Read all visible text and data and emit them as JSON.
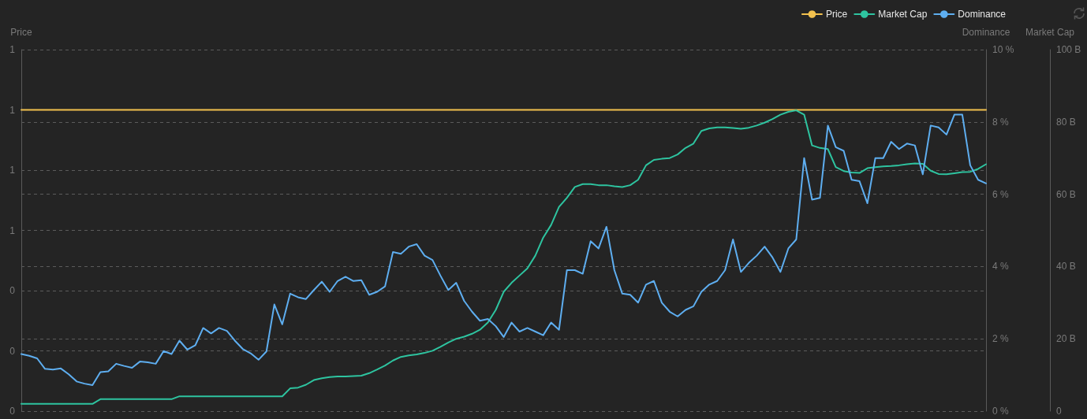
{
  "chart_data": {
    "type": "line",
    "categories": [
      null,
      null,
      null,
      null,
      null,
      null,
      null,
      null,
      null,
      null,
      null,
      null,
      null,
      null,
      null,
      null,
      null,
      null,
      null,
      null,
      null,
      null,
      null,
      null,
      null,
      null,
      null,
      null,
      null,
      null,
      null,
      null,
      null,
      null,
      null,
      null,
      null,
      null,
      null,
      null,
      null,
      null,
      null,
      null,
      null,
      null,
      null,
      null,
      null,
      null,
      null,
      null,
      null,
      null,
      null,
      null,
      null,
      null,
      null,
      null,
      null,
      null,
      null,
      null,
      null,
      null,
      null,
      null,
      null,
      null,
      null,
      null,
      null,
      null,
      null,
      null,
      null,
      null,
      null,
      null,
      null,
      null,
      null,
      null,
      null,
      null,
      null,
      null,
      null,
      null,
      null,
      null,
      null,
      null,
      null,
      null,
      null,
      null,
      null,
      null,
      null,
      null,
      null,
      null,
      null,
      null,
      null,
      null,
      null,
      null,
      null,
      null,
      null,
      null,
      null,
      null,
      null,
      null,
      null,
      null,
      null,
      null,
      null
    ],
    "series": [
      {
        "name": "Price",
        "color": "#f2c14e",
        "values": [
          1,
          1,
          1,
          1,
          1,
          1,
          1,
          1,
          1,
          1,
          1,
          1,
          1,
          1,
          1,
          1,
          1,
          1,
          1,
          1,
          1,
          1,
          1,
          1,
          1,
          1,
          1,
          1,
          1,
          1,
          1,
          1,
          1,
          1,
          1,
          1,
          1,
          1,
          1,
          1,
          1,
          1,
          1,
          1,
          1,
          1,
          1,
          1,
          1,
          1,
          1,
          1,
          1,
          1,
          1,
          1,
          1,
          1,
          1,
          1,
          1,
          1,
          1,
          1,
          1,
          1,
          1,
          1,
          1,
          1,
          1,
          1,
          1,
          1,
          1,
          1,
          1,
          1,
          1,
          1,
          1,
          1,
          1,
          1,
          1,
          1,
          1,
          1,
          1,
          1,
          1,
          1,
          1,
          1,
          1,
          1,
          1,
          1,
          1,
          1,
          1,
          1,
          1,
          1,
          1,
          1,
          1,
          1,
          1,
          1,
          1,
          1,
          1,
          1,
          1,
          1,
          1,
          1,
          1,
          1,
          1,
          1,
          1
        ]
      },
      {
        "name": "Market Cap",
        "color": "#2ec4a0",
        "axis": "y3",
        "values": [
          2.0,
          2.0,
          2.0,
          2.0,
          2.0,
          2.0,
          2.0,
          2.0,
          2.0,
          2.0,
          3.3,
          3.3,
          3.3,
          3.3,
          3.3,
          3.3,
          3.3,
          3.3,
          3.3,
          3.3,
          4.1,
          4.1,
          4.1,
          4.1,
          4.1,
          4.1,
          4.1,
          4.1,
          4.1,
          4.1,
          4.1,
          4.1,
          4.1,
          4.1,
          6.3,
          6.5,
          7.3,
          8.6,
          9.1,
          9.4,
          9.6,
          9.6,
          9.7,
          9.8,
          10.5,
          11.5,
          12.6,
          14.0,
          15.0,
          15.4,
          15.7,
          16.1,
          16.7,
          17.8,
          19.0,
          20.0,
          20.6,
          21.4,
          22.5,
          24.5,
          28.0,
          33.0,
          35.5,
          37.5,
          39.5,
          43.0,
          48.0,
          51.5,
          56.5,
          59.0,
          62.0,
          62.8,
          62.8,
          62.5,
          62.5,
          62.2,
          62.0,
          62.5,
          64.0,
          68.0,
          69.5,
          69.8,
          70.0,
          71.0,
          72.8,
          74.0,
          77.5,
          78.2,
          78.5,
          78.5,
          78.3,
          78.1,
          78.4,
          79.0,
          79.8,
          80.8,
          82.0,
          82.8,
          83.2,
          82.0,
          73.5,
          72.8,
          72.5,
          67.5,
          66.4,
          66.0,
          65.9,
          67.2,
          67.5,
          67.7,
          67.8,
          68.0,
          68.3,
          68.5,
          68.4,
          66.5,
          65.6,
          65.5,
          65.8,
          66.1,
          66.2,
          67.0,
          68.3
        ]
      },
      {
        "name": "Dominance",
        "color": "#5eaef0",
        "axis": "y2",
        "values": [
          1.58,
          1.53,
          1.46,
          1.17,
          1.15,
          1.18,
          1.02,
          0.82,
          0.76,
          0.72,
          1.08,
          1.1,
          1.31,
          1.25,
          1.2,
          1.37,
          1.35,
          1.31,
          1.66,
          1.58,
          1.95,
          1.7,
          1.82,
          2.3,
          2.15,
          2.3,
          2.22,
          1.95,
          1.72,
          1.6,
          1.42,
          1.65,
          2.95,
          2.4,
          3.25,
          3.15,
          3.1,
          3.35,
          3.58,
          3.3,
          3.6,
          3.72,
          3.6,
          3.62,
          3.22,
          3.3,
          3.45,
          4.4,
          4.35,
          4.55,
          4.62,
          4.3,
          4.18,
          3.75,
          3.35,
          3.55,
          3.05,
          2.75,
          2.5,
          2.55,
          2.35,
          2.05,
          2.45,
          2.2,
          2.3,
          2.2,
          2.1,
          2.45,
          2.25,
          3.9,
          3.9,
          3.8,
          4.7,
          4.5,
          5.1,
          3.9,
          3.25,
          3.22,
          3.0,
          3.5,
          3.6,
          3.0,
          2.75,
          2.62,
          2.8,
          2.9,
          3.3,
          3.5,
          3.6,
          3.9,
          4.75,
          3.85,
          4.1,
          4.3,
          4.55,
          4.25,
          3.85,
          4.5,
          4.75,
          7.0,
          5.85,
          5.9,
          7.9,
          7.3,
          7.2,
          6.4,
          6.36,
          5.75,
          7.0,
          7.0,
          7.45,
          7.25,
          7.4,
          7.35,
          6.55,
          7.9,
          7.85,
          7.65,
          8.2,
          8.2,
          6.8,
          6.4,
          6.3
        ]
      }
    ],
    "ylabel": "Price",
    "y2label": "Dominance",
    "y3label": "Market Cap",
    "ylim": [
      0,
      1.2
    ],
    "yticks": [
      0,
      {
        "value": 0.2,
        "label": "0"
      },
      {
        "value": 0.4,
        "label": "0"
      },
      {
        "value": 0.6,
        "label": "1"
      },
      {
        "value": 0.8,
        "label": "1"
      },
      1,
      {
        "value": 1.2,
        "label": "1"
      }
    ],
    "y2lim": [
      0,
      10
    ],
    "y2ticks": [
      {
        "value": 0,
        "label": "0 %"
      },
      {
        "value": 2,
        "label": "2 %"
      },
      {
        "value": 4,
        "label": "4 %"
      },
      {
        "value": 6,
        "label": "6 %"
      },
      {
        "value": 8,
        "label": "8 %"
      },
      {
        "value": 10,
        "label": "10 %"
      }
    ],
    "y3lim": [
      0,
      100
    ],
    "y3ticks": [
      0,
      {
        "value": 20,
        "label": "20 B"
      },
      {
        "value": 40,
        "label": "40 B"
      },
      {
        "value": 60,
        "label": "60 B"
      },
      {
        "value": 80,
        "label": "80 B"
      },
      {
        "value": 100,
        "label": "100 B"
      }
    ],
    "grid": "y",
    "legend": "top right"
  }
}
